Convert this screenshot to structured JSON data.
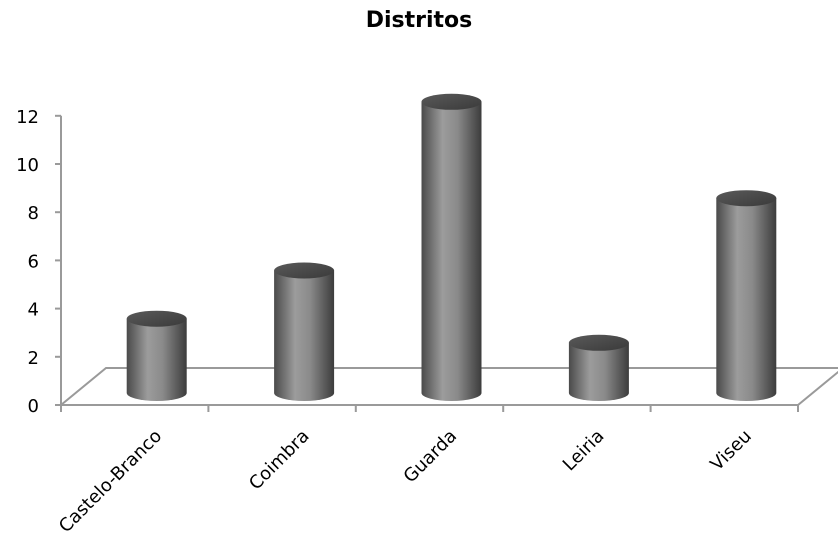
{
  "chart_data": {
    "type": "bar",
    "title": "Distritos",
    "categories": [
      "Castelo-Branco",
      "Coimbra",
      "Guarda",
      "Leiria",
      "Viseu"
    ],
    "values": [
      3,
      5,
      12,
      2,
      8
    ],
    "ylim": [
      0,
      12
    ],
    "yticks": [
      0,
      2,
      4,
      6,
      8,
      10,
      12
    ],
    "legend": "none",
    "bar_style": "3d-cylinder",
    "bar_color": "#8a8a8a",
    "axis_color": "#9a9a9a"
  }
}
